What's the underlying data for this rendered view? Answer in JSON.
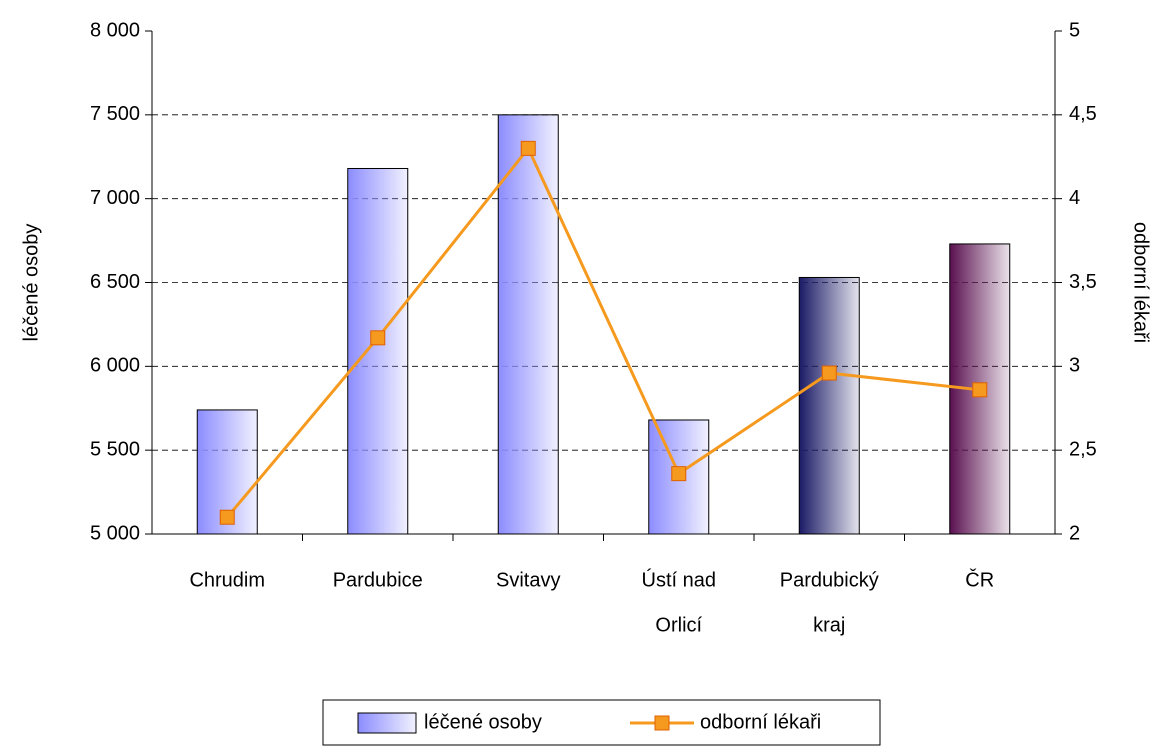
{
  "chart_data": {
    "type": "bar",
    "categories": [
      [
        "Chrudim"
      ],
      [
        "Pardubice"
      ],
      [
        "Svitavy"
      ],
      [
        "Ústí nad",
        "Orlicí"
      ],
      [
        "Pardubický",
        "kraj"
      ],
      [
        "ČR"
      ]
    ],
    "ylabel": "léčené osoby",
    "y2label": "odborní lékaři",
    "ylim": [
      5000,
      8000
    ],
    "yticks": [
      {
        "value": 5000,
        "label": "5 000"
      },
      {
        "value": 5500,
        "label": "5 500"
      },
      {
        "value": 6000,
        "label": "6 000"
      },
      {
        "value": 6500,
        "label": "6 500"
      },
      {
        "value": 7000,
        "label": "7 000"
      },
      {
        "value": 7500,
        "label": "7 500"
      },
      {
        "value": 8000,
        "label": "8 000"
      }
    ],
    "y2lim": [
      2,
      5
    ],
    "y2ticks": [
      2,
      {
        "value": 2.5,
        "label": "2,5"
      },
      3,
      {
        "value": 3.5,
        "label": "3,5"
      },
      4,
      {
        "value": 4.5,
        "label": "4,5"
      },
      5
    ],
    "grid": true,
    "legend": "bottom",
    "series": [
      {
        "name": "léčené osoby",
        "type": "bar",
        "color": "#8c8cff",
        "colors": [
          "#8c8cff",
          "#8c8cff",
          "#8c8cff",
          "#8c8cff",
          "#1a1a66",
          "#5a1050"
        ],
        "values": [
          5740,
          7180,
          7500,
          5680,
          6530,
          6730
        ]
      },
      {
        "name": "odborní lékaři",
        "type": "line",
        "axis": "y2",
        "color": "#f59a1e",
        "values": [
          2.1,
          3.17,
          4.3,
          2.36,
          2.96,
          2.86
        ]
      }
    ]
  }
}
